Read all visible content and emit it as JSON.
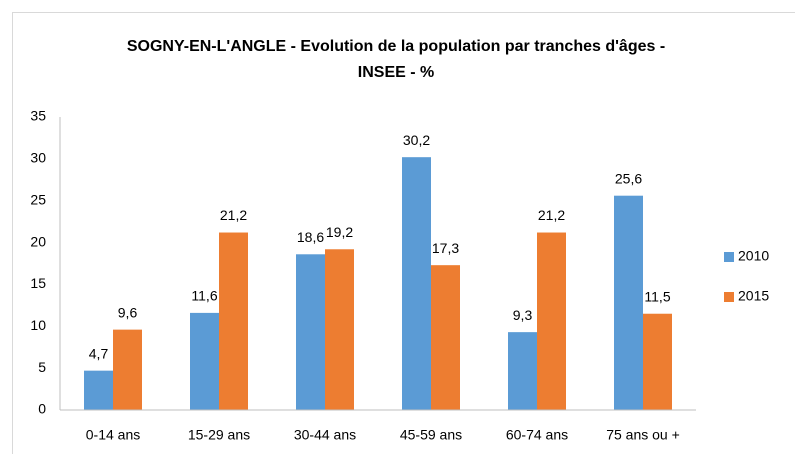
{
  "chart_data": {
    "type": "bar",
    "title": [
      "SOGNY-EN-L'ANGLE - Evolution de la population par tranches d'âges -",
      "INSEE - %"
    ],
    "categories": [
      "0-14 ans",
      "15-29 ans",
      "30-44 ans",
      "45-59 ans",
      "60-74 ans",
      "75 ans ou +"
    ],
    "series": [
      {
        "name": "2010",
        "color": "#5b9bd5",
        "values": [
          4.7,
          11.6,
          18.6,
          30.2,
          9.3,
          25.6
        ],
        "value_labels": [
          "4,7",
          "11,6",
          "18,6",
          "30,2",
          "9,3",
          "25,6"
        ]
      },
      {
        "name": "2015",
        "color": "#ed7d31",
        "values": [
          9.6,
          21.2,
          19.2,
          17.3,
          21.2,
          11.5
        ],
        "value_labels": [
          "9,6",
          "21,2",
          "19,2",
          "17,3",
          "21,2",
          "11,5"
        ]
      }
    ],
    "ylim": [
      0,
      35
    ],
    "yticks": [
      0,
      5,
      10,
      15,
      20,
      25,
      30,
      35
    ],
    "grid": false,
    "legend": "right"
  }
}
